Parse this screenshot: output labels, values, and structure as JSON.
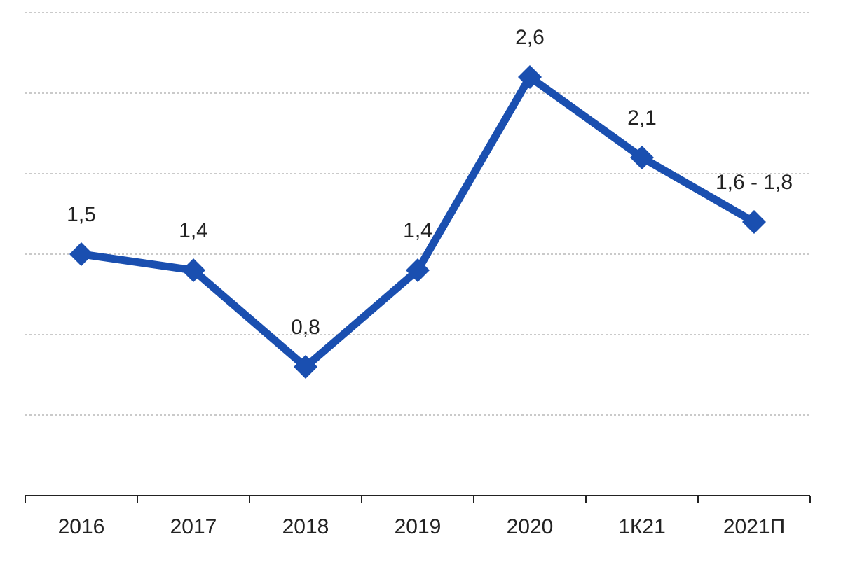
{
  "chart_data": {
    "type": "line",
    "categories": [
      "2016",
      "2017",
      "2018",
      "2019",
      "2020",
      "1К21",
      "2021П"
    ],
    "values": [
      1.5,
      1.4,
      0.8,
      1.4,
      2.6,
      2.1,
      1.7
    ],
    "data_labels": [
      "1,5",
      "1,4",
      "0,8",
      "1,4",
      "2,6",
      "2,1",
      "1,6 - 1,8"
    ],
    "ylim": [
      0,
      3
    ],
    "grid": true,
    "y_tick_labels_shown": false,
    "colors": {
      "series": "#1a4fb0",
      "grid": "#b9b9b9",
      "axis": "#222222",
      "text": "#222222"
    }
  }
}
